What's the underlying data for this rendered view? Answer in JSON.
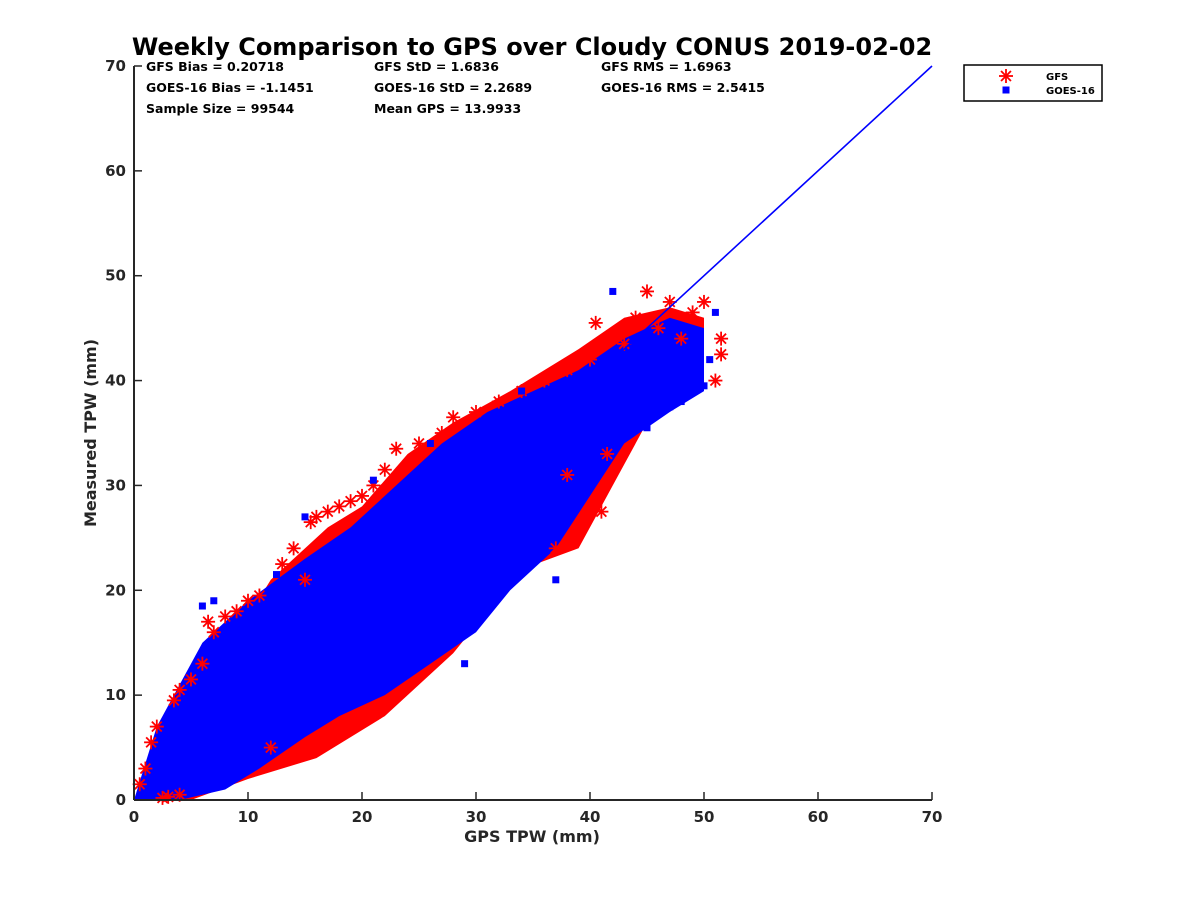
{
  "chart_data": {
    "type": "scatter",
    "title": "Weekly Comparison to GPS over Cloudy CONUS 2019-02-02",
    "xlabel": "GPS TPW (mm)",
    "ylabel": "Measured TPW (mm)",
    "xlim": [
      0,
      70
    ],
    "ylim": [
      0,
      70
    ],
    "xticks": [
      "0",
      "10",
      "20",
      "30",
      "40",
      "50",
      "60",
      "70"
    ],
    "yticks": [
      "0",
      "10",
      "20",
      "30",
      "40",
      "50",
      "60",
      "70"
    ],
    "grid": false,
    "legend_position": "outside-top-right",
    "stats": [
      [
        "GFS Bias = 0.20718",
        "GFS StD = 1.6836",
        "GFS RMS = 1.6963"
      ],
      [
        "GOES-16 Bias = -1.1451",
        "GOES-16 StD = 2.2689",
        "GOES-16 RMS = 2.5415"
      ],
      [
        "Sample Size = 99544",
        "Mean GPS = 13.9933"
      ]
    ],
    "reference_line": {
      "x": [
        0,
        70
      ],
      "y": [
        0,
        70
      ],
      "color": "#0000ff"
    },
    "series": [
      {
        "name": "GFS",
        "marker": "asterisk",
        "color": "#ff0000",
        "points": [
          [
            0.5,
            1.5
          ],
          [
            1,
            3
          ],
          [
            1.5,
            5.5
          ],
          [
            2,
            7
          ],
          [
            2.5,
            0.2
          ],
          [
            3,
            0.3
          ],
          [
            3.5,
            9.5
          ],
          [
            4,
            0.5
          ],
          [
            4,
            10.5
          ],
          [
            5,
            11.5
          ],
          [
            6,
            13
          ],
          [
            6.5,
            17
          ],
          [
            7,
            16
          ],
          [
            8,
            17.5
          ],
          [
            9,
            18
          ],
          [
            10,
            19
          ],
          [
            11,
            19.5
          ],
          [
            12,
            5
          ],
          [
            13,
            22.5
          ],
          [
            14,
            24
          ],
          [
            15,
            21
          ],
          [
            15.5,
            26.5
          ],
          [
            16,
            27
          ],
          [
            17,
            27.5
          ],
          [
            18,
            28
          ],
          [
            19,
            28.5
          ],
          [
            20,
            29
          ],
          [
            21,
            30
          ],
          [
            22,
            31.5
          ],
          [
            23,
            33.5
          ],
          [
            25,
            34
          ],
          [
            27,
            35
          ],
          [
            28,
            36.5
          ],
          [
            30,
            37
          ],
          [
            32,
            38
          ],
          [
            34,
            39
          ],
          [
            36,
            40
          ],
          [
            37,
            24
          ],
          [
            38,
            31
          ],
          [
            38,
            41
          ],
          [
            40,
            42
          ],
          [
            40.5,
            45.5
          ],
          [
            41,
            27.5
          ],
          [
            41.5,
            33
          ],
          [
            42,
            44
          ],
          [
            43,
            43.5
          ],
          [
            44,
            46
          ],
          [
            45,
            48.5
          ],
          [
            46,
            45
          ],
          [
            47,
            47.5
          ],
          [
            48,
            44
          ],
          [
            49,
            46.5
          ],
          [
            50,
            47.5
          ],
          [
            51,
            40
          ],
          [
            51.5,
            44
          ],
          [
            51.5,
            42.5
          ]
        ]
      },
      {
        "name": "GOES-16",
        "marker": "square",
        "color": "#0000ff",
        "points": [
          [
            1,
            0.5
          ],
          [
            2,
            1.5
          ],
          [
            3,
            2.5
          ],
          [
            5,
            4
          ],
          [
            6,
            18.5
          ],
          [
            7,
            19
          ],
          [
            8,
            8
          ],
          [
            10,
            8.5
          ],
          [
            12,
            10
          ],
          [
            12.5,
            21.5
          ],
          [
            14,
            11.5
          ],
          [
            15,
            27
          ],
          [
            16,
            13
          ],
          [
            18,
            15
          ],
          [
            20,
            16
          ],
          [
            21,
            30.5
          ],
          [
            22,
            18
          ],
          [
            23,
            16
          ],
          [
            25,
            19.5
          ],
          [
            26,
            34
          ],
          [
            27,
            22
          ],
          [
            29,
            13
          ],
          [
            30,
            25
          ],
          [
            31,
            36
          ],
          [
            33,
            26
          ],
          [
            34,
            39
          ],
          [
            36,
            28
          ],
          [
            37,
            21
          ],
          [
            38,
            29
          ],
          [
            39,
            40
          ],
          [
            40,
            31
          ],
          [
            42,
            48.5
          ],
          [
            43,
            35
          ],
          [
            44,
            36
          ],
          [
            45,
            35.5
          ],
          [
            46,
            39
          ],
          [
            47,
            37.5
          ],
          [
            48,
            38
          ],
          [
            49,
            41
          ],
          [
            50,
            39.5
          ],
          [
            50.5,
            42
          ],
          [
            51,
            46.5
          ]
        ]
      }
    ]
  }
}
